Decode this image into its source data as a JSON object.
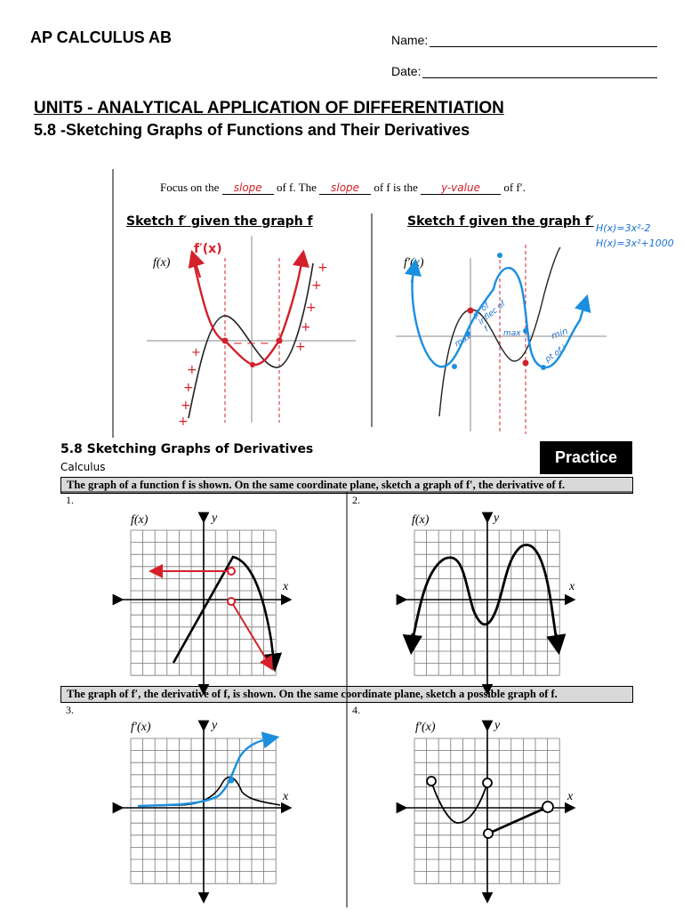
{
  "header": {
    "course": "AP CALCULUS AB",
    "name_label": "Name:",
    "date_label": "Date:",
    "unit": "UNIT5 - ANALYTICAL APPLICATION OF DIFFERENTIATION",
    "topic": "5.8 -Sketching Graphs of Functions and Their Derivatives"
  },
  "notes": {
    "focus_pre": "Focus on the",
    "blank1": "slope",
    "focus_mid1": "of f.  The",
    "blank2": "slope",
    "focus_mid2": "of f is the",
    "blank3": "y-value",
    "focus_end": "of f′.",
    "left_title": "Sketch f′ given the graph f",
    "right_title": "Sketch f given the graph f′",
    "left_fn_label": "f(x)",
    "left_red_label": "f′(x)",
    "right_fn_label": "f′(x)",
    "right_eq1": "H(x)=3x²-2",
    "right_eq2": "H(x)=3x²+1000",
    "ann_poi": "pt of inflec of f",
    "ann_max1": "max",
    "ann_max2": "max",
    "ann_min": "min",
    "ann_poi2": "pt of i"
  },
  "practice": {
    "section_title": "5.8 Sketching Graphs of Derivatives",
    "subtitle": "Calculus",
    "badge": "Practice",
    "instruction1": "The graph of a function f is shown. On the same coordinate plane, sketch a graph of f′, the derivative of f.",
    "instruction2": "The graph of f′, the derivative of f, is shown.  On the same coordinate plane, sketch a possible graph of f.",
    "problems": [
      {
        "number": "1.",
        "label": "f(x)"
      },
      {
        "number": "2.",
        "label": "f(x)"
      },
      {
        "number": "3.",
        "label": "f′(x)"
      },
      {
        "number": "4.",
        "label": "f′(x)"
      }
    ],
    "axis_y": "y",
    "axis_x": "x"
  },
  "colors": {
    "red": "#d4202a",
    "blue": "#1a8fe0",
    "gray": "#d9d9d9"
  }
}
